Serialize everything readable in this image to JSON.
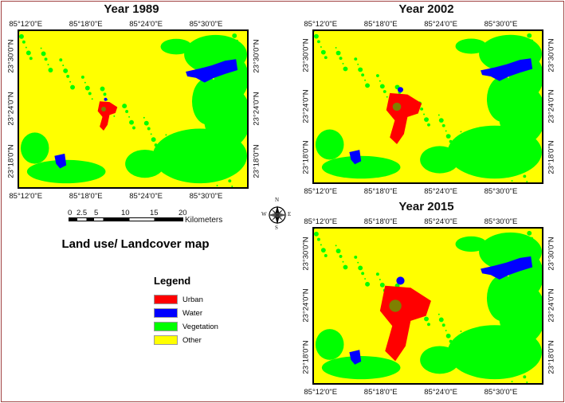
{
  "maps": [
    {
      "title": "Year 1989",
      "urban_extent": "small"
    },
    {
      "title": "Year 2002",
      "urban_extent": "medium"
    },
    {
      "title": "Year 2015",
      "urban_extent": "large"
    }
  ],
  "lon_labels": [
    "85°12'0\"E",
    "85°18'0\"E",
    "85°24'0\"E",
    "85°30'0\"E"
  ],
  "lat_labels": [
    "23°30'0\"N",
    "23°24'0\"N",
    "23°18'0\"N"
  ],
  "scale_bar": {
    "ticks": [
      "0",
      "2.5",
      "5",
      "10",
      "15",
      "20"
    ],
    "unit": "Kilometers"
  },
  "compass": {
    "n": "N",
    "s": "S",
    "e": "E",
    "w": "W"
  },
  "map_title": "Land use/ Landcover map",
  "legend": {
    "title": "Legend",
    "items": [
      {
        "label": "Urban",
        "color": "#ff0000"
      },
      {
        "label": "Water",
        "color": "#0000ff"
      },
      {
        "label": "Vegetation",
        "color": "#00ff00"
      },
      {
        "label": "Other",
        "color": "#ffff00"
      }
    ]
  }
}
